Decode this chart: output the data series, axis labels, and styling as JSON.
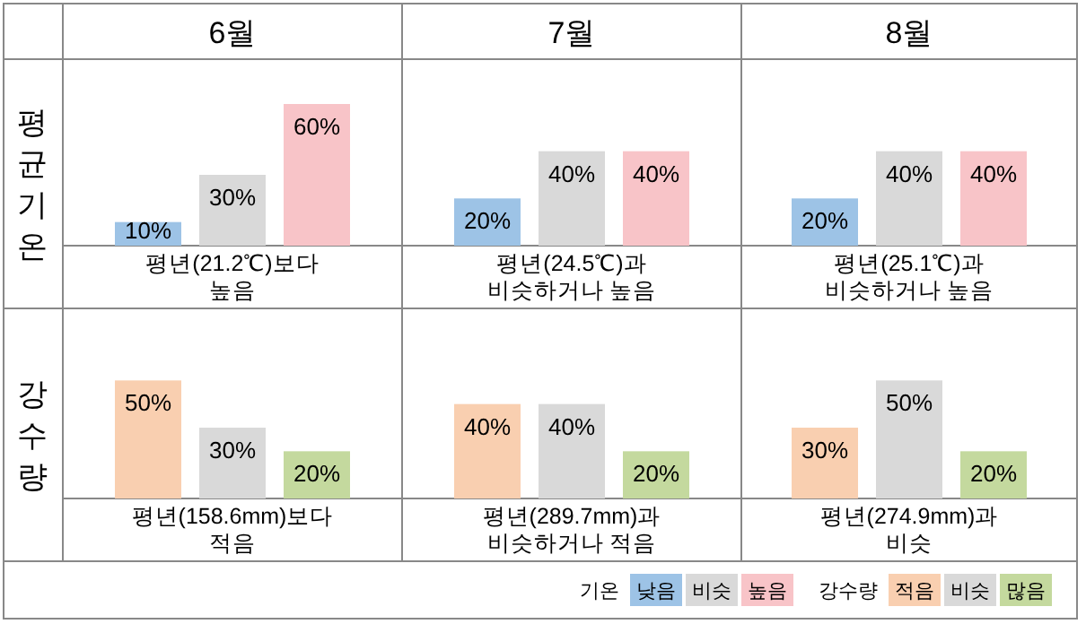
{
  "chart_data": [
    {
      "type": "bar",
      "ylabel": "평균기온",
      "categories": [
        "6월",
        "7월",
        "8월"
      ],
      "legend": "bottom right",
      "legend_title": "기온",
      "annotations": [
        "평년(21.2℃)보다\n높음",
        "평년(24.5℃)과\n비슷하거나 높음",
        "평년(25.1℃)과\n비슷하거나 높음"
      ],
      "series": [
        {
          "name": "낮음",
          "color": "#9dc3e6",
          "values": [
            10,
            20,
            20
          ],
          "value_labels": [
            "10%",
            "20%",
            "20%"
          ]
        },
        {
          "name": "비슷",
          "color": "#d9d9d9",
          "values": [
            30,
            40,
            40
          ],
          "value_labels": [
            "30%",
            "40%",
            "40%"
          ]
        },
        {
          "name": "높음",
          "color": "#f8c4c8",
          "values": [
            60,
            40,
            40
          ],
          "value_labels": [
            "60%",
            "40%",
            "40%"
          ]
        }
      ]
    },
    {
      "type": "bar",
      "ylabel": "강수량",
      "legend": "bottom right",
      "legend_title": "강수량",
      "annotations": [
        "평년(158.6mm)보다\n적음",
        "평년(289.7mm)과\n비슷하거나 적음",
        "평년(274.9mm)과\n비슷"
      ],
      "series": [
        {
          "name": "적음",
          "color": "#f9cfb0",
          "values": [
            50,
            40,
            30
          ],
          "value_labels": [
            "50%",
            "40%",
            "30%"
          ]
        },
        {
          "name": "비슷",
          "color": "#d9d9d9",
          "values": [
            30,
            40,
            50
          ],
          "value_labels": [
            "30%",
            "40%",
            "50%"
          ]
        },
        {
          "name": "많음",
          "color": "#c4d99e",
          "values": [
            20,
            20,
            20
          ],
          "value_labels": [
            "20%",
            "20%",
            "20%"
          ]
        }
      ]
    }
  ]
}
